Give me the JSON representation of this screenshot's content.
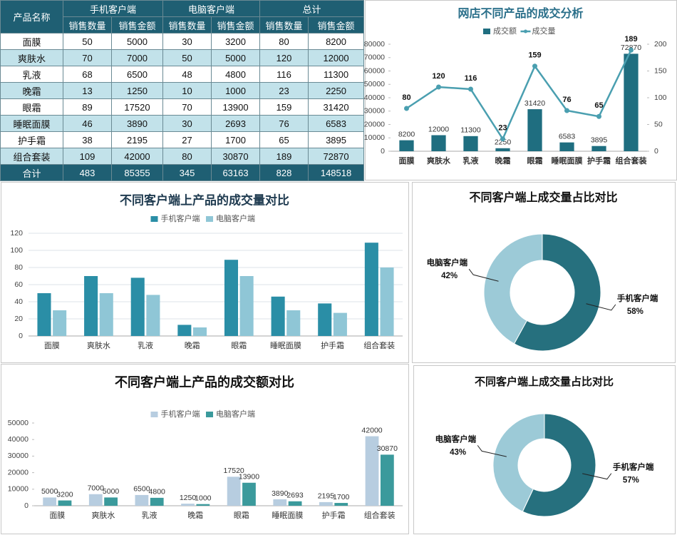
{
  "table": {
    "header": [
      "产品名称",
      "手机客户端",
      "电脑客户端",
      "总计"
    ],
    "subheader": [
      "销售数量",
      "销售金额",
      "销售数量",
      "销售金额",
      "销售数量",
      "销售金额"
    ],
    "rows": [
      [
        "面膜",
        50,
        5000,
        30,
        3200,
        80,
        8200
      ],
      [
        "爽肤水",
        70,
        7000,
        50,
        5000,
        120,
        12000
      ],
      [
        "乳液",
        68,
        6500,
        48,
        4800,
        116,
        11300
      ],
      [
        "晚霜",
        13,
        1250,
        10,
        1000,
        23,
        2250
      ],
      [
        "眼霜",
        89,
        17520,
        70,
        13900,
        159,
        31420
      ],
      [
        "睡眠面膜",
        46,
        3890,
        30,
        2693,
        76,
        6583
      ],
      [
        "护手霜",
        38,
        2195,
        27,
        1700,
        65,
        3895
      ],
      [
        "组合套装",
        109,
        42000,
        80,
        30870,
        189,
        72870
      ],
      [
        "合计",
        483,
        85355,
        345,
        63163,
        828,
        148518
      ]
    ]
  },
  "chart_data": [
    {
      "type": "bar",
      "title": "网店不同产品的成交分析",
      "legend": "top",
      "grid": false,
      "data_labels": true,
      "categories": [
        "面膜",
        "爽肤水",
        "乳液",
        "晚霜",
        "眼霜",
        "睡眠面膜",
        "护手霜",
        "组合套装"
      ],
      "series": [
        {
          "name": "成交额",
          "color": "#1f6e80",
          "values": [
            8200,
            12000,
            11300,
            2250,
            31420,
            6583,
            3895,
            72870
          ]
        },
        {
          "name": "成交量",
          "type": "line",
          "axis": "y2",
          "color": "#4a9fb0",
          "values": [
            80,
            120,
            116,
            23,
            159,
            76,
            65,
            189
          ]
        }
      ],
      "ylim": [
        0,
        80000
      ],
      "yticks": [
        0,
        10000,
        20000,
        30000,
        40000,
        50000,
        60000,
        70000,
        80000
      ],
      "y2lim": [
        0,
        200
      ],
      "y2ticks": [
        0,
        50,
        100,
        150,
        200
      ]
    },
    {
      "type": "bar",
      "title": "不同客户端上产品的成交量对比",
      "legend": "top",
      "grid": true,
      "data_labels": false,
      "categories": [
        "面膜",
        "爽肤水",
        "乳液",
        "晚霜",
        "眼霜",
        "睡眠面膜",
        "护手霜",
        "组合套装"
      ],
      "series": [
        {
          "name": "手机客户端",
          "color": "#2a8ea6",
          "values": [
            50,
            70,
            68,
            13,
            89,
            46,
            38,
            109
          ]
        },
        {
          "name": "电脑客户端",
          "color": "#8fc6d6",
          "values": [
            30,
            50,
            48,
            10,
            70,
            30,
            27,
            80
          ]
        }
      ],
      "ylim": [
        0,
        120
      ],
      "yticks": [
        0,
        20,
        40,
        60,
        80,
        100,
        120
      ]
    },
    {
      "type": "donut",
      "title": "不同客户端上成交量占比对比",
      "categories": [
        "手机客户端",
        "电脑客户端"
      ],
      "values": [
        58,
        42
      ],
      "value_labels": [
        "58%",
        "42%"
      ],
      "colors": [
        "#26707e",
        "#9ccad7"
      ]
    },
    {
      "type": "bar",
      "title": "不同客户端上产品的成交额对比",
      "legend": "top",
      "grid": false,
      "data_labels": true,
      "categories": [
        "面膜",
        "爽肤水",
        "乳液",
        "晚霜",
        "眼霜",
        "睡眠面膜",
        "护手霜",
        "组合套装"
      ],
      "series": [
        {
          "name": "手机客户端",
          "color": "#b7cde0",
          "values": [
            5000,
            7000,
            6500,
            1250,
            17520,
            3890,
            2195,
            42000
          ]
        },
        {
          "name": "电脑客户端",
          "color": "#3b9a9c",
          "values": [
            3200,
            5000,
            4800,
            1000,
            13900,
            2693,
            1700,
            30870
          ]
        }
      ],
      "ylim": [
        0,
        50000
      ],
      "yticks": [
        0,
        10000,
        20000,
        30000,
        40000,
        50000
      ]
    },
    {
      "type": "donut",
      "title": "不同客户端上成交量占比对比",
      "categories": [
        "手机客户端",
        "电脑客户端"
      ],
      "values": [
        57,
        43
      ],
      "value_labels": [
        "57%",
        "43%"
      ],
      "colors": [
        "#26707e",
        "#9ccad7"
      ]
    }
  ]
}
